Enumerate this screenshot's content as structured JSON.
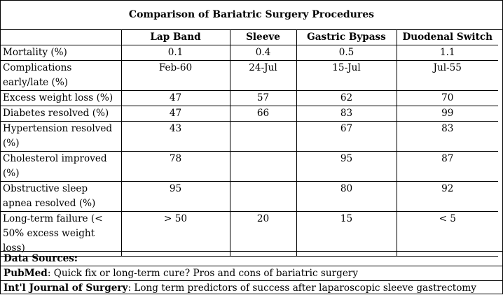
{
  "title": "Comparison of Bariatric Surgery Procedures",
  "columns": [
    "",
    "Lap Band",
    "Sleeve",
    "Gastric Bypass",
    "Duodenal Switch"
  ],
  "rows": [
    {
      "label": "Mortality (%)",
      "values": [
        "0.1",
        "0.4",
        "0.5",
        "1.1"
      ]
    },
    {
      "label": "Complications early/late (%)",
      "values": [
        "Feb-60",
        "24-Jul",
        "15-Jul",
        "Jul-55"
      ]
    },
    {
      "label": "Excess weight loss (%)",
      "values": [
        "47",
        "57",
        "62",
        "70"
      ]
    },
    {
      "label": "Diabetes resolved (%)",
      "values": [
        "47",
        "66",
        "83",
        "99"
      ]
    },
    {
      "label": "Hypertension resolved (%)",
      "values": [
        "43",
        "",
        "67",
        "83"
      ]
    },
    {
      "label": "Cholesterol improved (%)",
      "values": [
        "78",
        "",
        "95",
        "87"
      ]
    },
    {
      "label": "Obstructive sleep apnea resolved (%)",
      "values": [
        "95",
        "",
        "80",
        "92"
      ]
    },
    {
      "label": "Long-term failure (< 50% excess weight loss)",
      "values": [
        "> 50",
        "20",
        "15",
        "< 5"
      ]
    }
  ],
  "sources": {
    "heading": "Data Sources:",
    "items": [
      {
        "name": "PubMed",
        "text": ": Quick fix or long-term cure? Pros and cons of bariatric surgery"
      },
      {
        "name": "Int'l Journal of Surgery",
        "text": ": Long term predictors of success after laparoscopic sleeve gastrectomy"
      }
    ]
  }
}
